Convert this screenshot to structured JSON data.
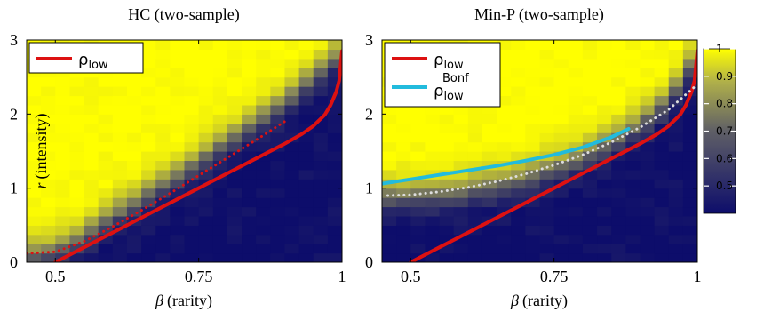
{
  "chart_data": [
    {
      "type": "heatmap",
      "title": "HC (two-sample)",
      "xlabel": "(rarity)",
      "xlabel_symbol": "β",
      "ylabel": "(intensity)",
      "ylabel_symbol": "r",
      "xlim": [
        0.45,
        1.0
      ],
      "ylim": [
        0,
        3
      ],
      "xticks": [
        0.5,
        0.75,
        1
      ],
      "xtick_labels": [
        "0.5",
        "0.75",
        "1"
      ],
      "yticks": [
        0,
        1,
        2,
        3
      ],
      "ytick_labels": [
        "0",
        "1",
        "2",
        "3"
      ],
      "grid": false,
      "legend_position": "top-left",
      "colormap": {
        "low": "#0d0d6b",
        "mid": "#8a8a5a",
        "high": "#ffff00"
      },
      "boundary": {
        "beta": [
          0.45,
          0.48,
          0.5,
          0.55,
          0.6,
          0.65,
          0.7,
          0.75,
          0.8,
          0.85,
          0.9,
          0.95,
          1.0
        ],
        "r": [
          0.15,
          0.18,
          0.22,
          0.42,
          0.68,
          0.92,
          1.16,
          1.42,
          1.68,
          1.95,
          2.22,
          2.55,
          2.9
        ]
      },
      "series": [
        {
          "name": "low",
          "name_symbol": "ρ",
          "color": "#dd1111",
          "style": "solid",
          "beta": [
            0.5,
            0.55,
            0.6,
            0.65,
            0.7,
            0.75,
            0.8,
            0.85,
            0.9,
            0.93,
            0.95,
            0.97,
            0.98,
            0.99,
            0.995,
            1.0
          ],
          "r": [
            0.0,
            0.2,
            0.4,
            0.6,
            0.8,
            1.0,
            1.2,
            1.4,
            1.6,
            1.73,
            1.84,
            1.99,
            2.12,
            2.3,
            2.45,
            2.85
          ]
        },
        {
          "name": "",
          "color": "#dd1111",
          "style": "dotted",
          "beta": [
            0.45,
            0.5,
            0.55,
            0.6,
            0.65,
            0.7,
            0.75,
            0.8,
            0.85,
            0.9
          ],
          "r": [
            0.12,
            0.14,
            0.28,
            0.48,
            0.7,
            0.93,
            1.17,
            1.41,
            1.65,
            1.9
          ]
        }
      ]
    },
    {
      "type": "heatmap",
      "title": "Min-P (two-sample)",
      "xlabel": "(rarity)",
      "xlabel_symbol": "β",
      "ylabel": "",
      "xlim": [
        0.45,
        1.0
      ],
      "ylim": [
        0,
        3
      ],
      "xticks": [
        0.5,
        0.75,
        1
      ],
      "xtick_labels": [
        "0.5",
        "0.75",
        "1"
      ],
      "yticks": [
        0,
        1,
        2,
        3
      ],
      "ytick_labels": [
        "0",
        "1",
        "2",
        "3"
      ],
      "grid": false,
      "legend_position": "top-left",
      "colormap": {
        "low": "#0d0d6b",
        "mid": "#8a8a5a",
        "high": "#ffff00"
      },
      "boundary": {
        "beta": [
          0.45,
          0.5,
          0.55,
          0.6,
          0.65,
          0.7,
          0.75,
          0.8,
          0.85,
          0.9,
          0.95,
          1.0
        ],
        "r": [
          0.95,
          0.95,
          0.98,
          1.03,
          1.1,
          1.2,
          1.32,
          1.48,
          1.68,
          1.93,
          2.25,
          2.85
        ]
      },
      "series": [
        {
          "name": "low",
          "name_symbol": "ρ",
          "color": "#dd1111",
          "style": "solid",
          "beta": [
            0.5,
            0.55,
            0.6,
            0.65,
            0.7,
            0.75,
            0.8,
            0.85,
            0.9,
            0.93,
            0.95,
            0.97,
            0.98,
            0.99,
            0.995,
            1.0
          ],
          "r": [
            0.0,
            0.2,
            0.4,
            0.6,
            0.8,
            1.0,
            1.2,
            1.4,
            1.6,
            1.73,
            1.84,
            1.99,
            2.12,
            2.3,
            2.45,
            2.85
          ]
        },
        {
          "name": "low",
          "name_symbol": "ρ",
          "superscript": "Bonf",
          "color": "#22bbdd",
          "style": "solid",
          "beta": [
            0.45,
            0.5,
            0.55,
            0.6,
            0.65,
            0.7,
            0.75,
            0.8,
            0.85,
            0.88
          ],
          "r": [
            1.06,
            1.12,
            1.18,
            1.24,
            1.3,
            1.37,
            1.45,
            1.55,
            1.69,
            1.8
          ]
        },
        {
          "name": "",
          "color": "#dddddd",
          "style": "dotted",
          "beta": [
            0.46,
            0.5,
            0.55,
            0.6,
            0.65,
            0.7,
            0.75,
            0.8,
            0.85,
            0.9,
            0.95,
            1.0
          ],
          "r": [
            0.9,
            0.91,
            0.95,
            1.01,
            1.09,
            1.19,
            1.31,
            1.45,
            1.62,
            1.82,
            2.06,
            2.4
          ]
        }
      ],
      "colorbar": {
        "min": 0.4,
        "max": 1.0,
        "ticks": [
          "1",
          "0.9",
          "0.8",
          "0.7",
          "0.6",
          "0.5"
        ],
        "tick_values": [
          1,
          0.9,
          0.8,
          0.7,
          0.6,
          0.5
        ]
      }
    }
  ]
}
